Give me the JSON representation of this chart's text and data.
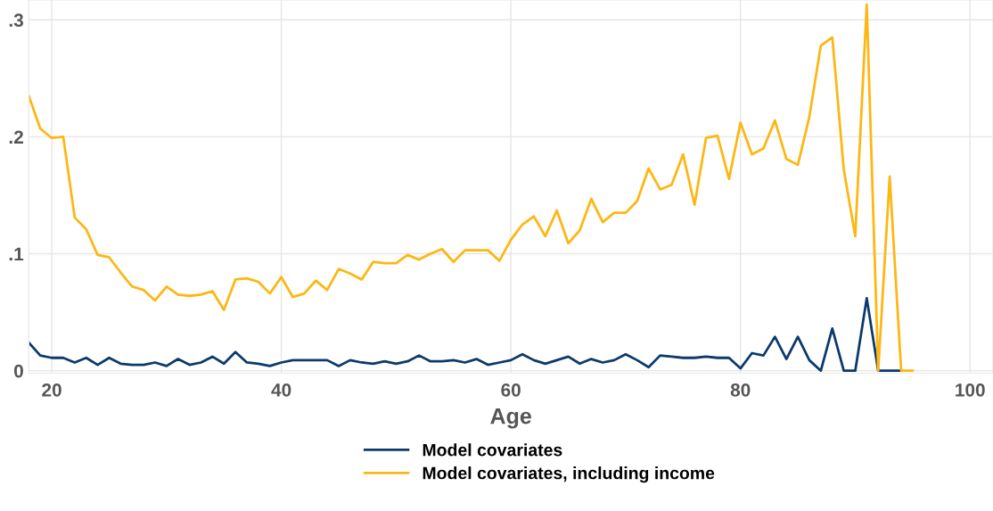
{
  "chart_data": {
    "type": "line",
    "xlabel": "Age",
    "x": [
      18,
      19,
      20,
      21,
      22,
      23,
      24,
      25,
      26,
      27,
      28,
      29,
      30,
      31,
      32,
      33,
      34,
      35,
      36,
      37,
      38,
      39,
      40,
      41,
      42,
      43,
      44,
      45,
      46,
      47,
      48,
      49,
      50,
      51,
      52,
      53,
      54,
      55,
      56,
      57,
      58,
      59,
      60,
      61,
      62,
      63,
      64,
      65,
      66,
      67,
      68,
      69,
      70,
      71,
      72,
      73,
      74,
      75,
      76,
      77,
      78,
      79,
      80,
      81,
      82,
      83,
      84,
      85,
      86,
      87,
      88,
      89,
      90,
      91,
      92,
      93,
      94,
      95
    ],
    "series": [
      {
        "name": "Model covariates",
        "color": "#0b3a6b",
        "values": [
          0.024,
          0.013,
          0.011,
          0.011,
          0.007,
          0.011,
          0.005,
          0.011,
          0.006,
          0.005,
          0.005,
          0.007,
          0.004,
          0.01,
          0.005,
          0.007,
          0.012,
          0.006,
          0.016,
          0.007,
          0.006,
          0.004,
          0.007,
          0.009,
          0.009,
          0.009,
          0.009,
          0.004,
          0.009,
          0.007,
          0.006,
          0.008,
          0.006,
          0.008,
          0.013,
          0.008,
          0.008,
          0.009,
          0.007,
          0.01,
          0.005,
          0.007,
          0.009,
          0.014,
          0.009,
          0.006,
          0.009,
          0.012,
          0.006,
          0.01,
          0.007,
          0.009,
          0.014,
          0.009,
          0.003,
          0.013,
          0.012,
          0.011,
          0.011,
          0.012,
          0.011,
          0.011,
          0.002,
          0.015,
          0.013,
          0.029,
          0.01,
          0.029,
          0.009,
          0,
          0.036,
          0,
          0,
          0.062,
          0,
          0,
          0,
          null
        ]
      },
      {
        "name": "Model covariates, including income",
        "color": "#fdb714",
        "values": [
          0.235,
          0.207,
          0.199,
          0.2,
          0.131,
          0.121,
          0.099,
          0.097,
          0.084,
          0.072,
          0.069,
          0.06,
          0.072,
          0.065,
          0.064,
          0.065,
          0.068,
          0.052,
          0.078,
          0.079,
          0.076,
          0.066,
          0.08,
          0.063,
          0.066,
          0.077,
          0.069,
          0.087,
          0.083,
          0.078,
          0.093,
          0.092,
          0.092,
          0.099,
          0.095,
          0.1,
          0.104,
          0.093,
          0.103,
          0.103,
          0.103,
          0.094,
          0.112,
          0.125,
          0.132,
          0.115,
          0.137,
          0.109,
          0.12,
          0.147,
          0.127,
          0.135,
          0.135,
          0.145,
          0.173,
          0.155,
          0.159,
          0.185,
          0.142,
          0.199,
          0.201,
          0.164,
          0.212,
          0.185,
          0.19,
          0.214,
          0.181,
          0.176,
          0.217,
          0.278,
          0.285,
          0.172,
          0.115,
          0.313,
          0,
          0.166,
          0,
          0
        ]
      }
    ],
    "xlim": [
      18,
      102
    ],
    "xticks": [
      20,
      40,
      60,
      80,
      100
    ],
    "ylim": [
      -0.002,
      0.317
    ],
    "yticks": [
      {
        "value": 0,
        "label": "0"
      },
      {
        "value": 0.1,
        "label": ".1"
      },
      {
        "value": 0.2,
        "label": ".2"
      },
      {
        "value": 0.3,
        "label": ".3"
      }
    ],
    "grid": true,
    "legend": "bottom",
    "line_style": "solid",
    "marker": "none"
  }
}
